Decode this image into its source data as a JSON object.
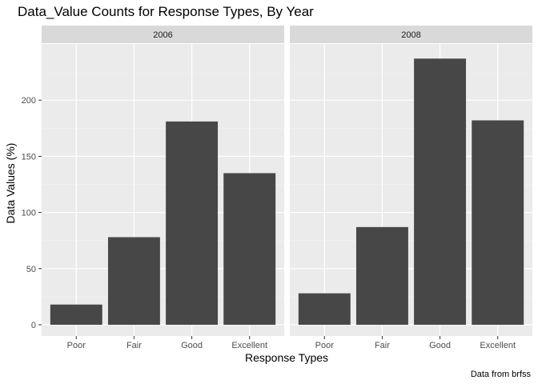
{
  "chart_data": {
    "type": "bar",
    "title": "Data_Value Counts for Response Types, By Year",
    "xlabel": "Response Types",
    "ylabel": "Data Values (%)",
    "caption": "Data from brfss",
    "categories": [
      "Poor",
      "Fair",
      "Good",
      "Excellent"
    ],
    "ylim": [
      -10,
      250
    ],
    "yticks": [
      0,
      50,
      100,
      150,
      200
    ],
    "ytick_labels": [
      "0",
      "50",
      "100",
      "150",
      "200"
    ],
    "grid": true,
    "facets": [
      {
        "label": "2006",
        "values": [
          18,
          78,
          181,
          135
        ]
      },
      {
        "label": "2008",
        "values": [
          28,
          87,
          237,
          182
        ]
      }
    ],
    "colors": {
      "bar": "#474747",
      "panel": "#ebebeb",
      "strip": "#d9d9d9",
      "grid_major": "#ffffff",
      "grid_minor": "#f2f2f2"
    }
  }
}
